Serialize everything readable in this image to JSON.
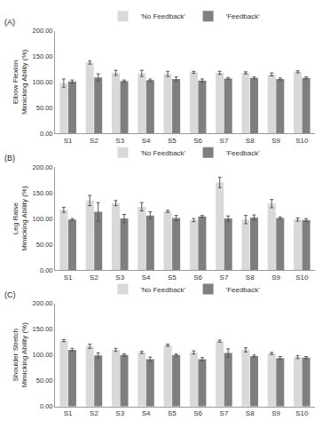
{
  "chart_data": [
    {
      "type": "bar",
      "title": "(A)",
      "y_label": "Elbow Flexion\nMimicking Ability (%)",
      "categories": [
        "S1",
        "S2",
        "S3",
        "S4",
        "S5",
        "S6",
        "S7",
        "S8",
        "S9",
        "S10"
      ],
      "series": [
        {
          "name": "'No Feedback'",
          "color": "#d9d9d9",
          "values": [
            98,
            138,
            118,
            117,
            116,
            119,
            118,
            118,
            115,
            120
          ],
          "errors": [
            8,
            3,
            5,
            6,
            5,
            2,
            3,
            2,
            3,
            2
          ]
        },
        {
          "name": "'Feedback'",
          "color": "#7f7f7f",
          "values": [
            101,
            109,
            102,
            104,
            106,
            103,
            107,
            108,
            106,
            108
          ],
          "errors": [
            3,
            7,
            2,
            2,
            4,
            3,
            2,
            2,
            2,
            2
          ]
        }
      ],
      "ylim": [
        0,
        200
      ],
      "yticks": [
        {
          "value": 0,
          "label": "0.00"
        },
        {
          "value": 50,
          "label": "50.00"
        },
        {
          "value": 100,
          "label": "100.00"
        },
        {
          "value": 150,
          "label": "150.00"
        },
        {
          "value": 200,
          "label": "200.00"
        }
      ],
      "grid": false,
      "legend": "top"
    },
    {
      "type": "bar",
      "title": "(B)",
      "y_label": "Leg Raise\nMimicking Ability (%)",
      "categories": [
        "S1",
        "S2",
        "S3",
        "S4",
        "S5",
        "S6",
        "S7",
        "S8",
        "S9",
        "S10"
      ],
      "series": [
        {
          "name": "'No Feedback'",
          "color": "#d9d9d9",
          "values": [
            117,
            135,
            130,
            123,
            114,
            97,
            170,
            98,
            129,
            98
          ],
          "errors": [
            5,
            10,
            5,
            8,
            2,
            3,
            10,
            8,
            8,
            3
          ]
        },
        {
          "name": "'Feedback'",
          "color": "#7f7f7f",
          "values": [
            98,
            113,
            100,
            106,
            101,
            104,
            100,
            102,
            101,
            97
          ],
          "errors": [
            2,
            18,
            8,
            7,
            5,
            2,
            5,
            5,
            2,
            3
          ]
        }
      ],
      "ylim": [
        0,
        200
      ],
      "yticks": [
        {
          "value": 0,
          "label": "0.00"
        },
        {
          "value": 50,
          "label": "50.00"
        },
        {
          "value": 100,
          "label": "100.00"
        },
        {
          "value": 150,
          "label": "150.00"
        },
        {
          "value": 200,
          "label": "200.00"
        }
      ],
      "grid": false,
      "legend": "top"
    },
    {
      "type": "bar",
      "title": "(C)",
      "y_label": "Shoulder Stretch\nMimicking Ability (%)",
      "categories": [
        "S1",
        "S2",
        "S3",
        "S4",
        "S5",
        "S6",
        "S7",
        "S8",
        "S9",
        "S10"
      ],
      "series": [
        {
          "name": "'No Feedback'",
          "color": "#d9d9d9",
          "values": [
            128,
            117,
            110,
            105,
            119,
            105,
            127,
            110,
            103,
            96
          ],
          "errors": [
            2,
            4,
            3,
            2,
            2,
            3,
            2,
            4,
            2,
            3
          ]
        },
        {
          "name": "'Feedback'",
          "color": "#7f7f7f",
          "values": [
            110,
            99,
            100,
            92,
            100,
            92,
            104,
            98,
            94,
            95
          ],
          "errors": [
            3,
            5,
            2,
            4,
            2,
            3,
            8,
            2,
            3,
            2
          ]
        }
      ],
      "ylim": [
        0,
        200
      ],
      "yticks": [
        {
          "value": 0,
          "label": "0.00"
        },
        {
          "value": 50,
          "label": "50.00"
        },
        {
          "value": 100,
          "label": "100.00"
        },
        {
          "value": 150,
          "label": "150.00"
        },
        {
          "value": 200,
          "label": "200.00"
        }
      ],
      "grid": false,
      "legend": "top"
    }
  ]
}
